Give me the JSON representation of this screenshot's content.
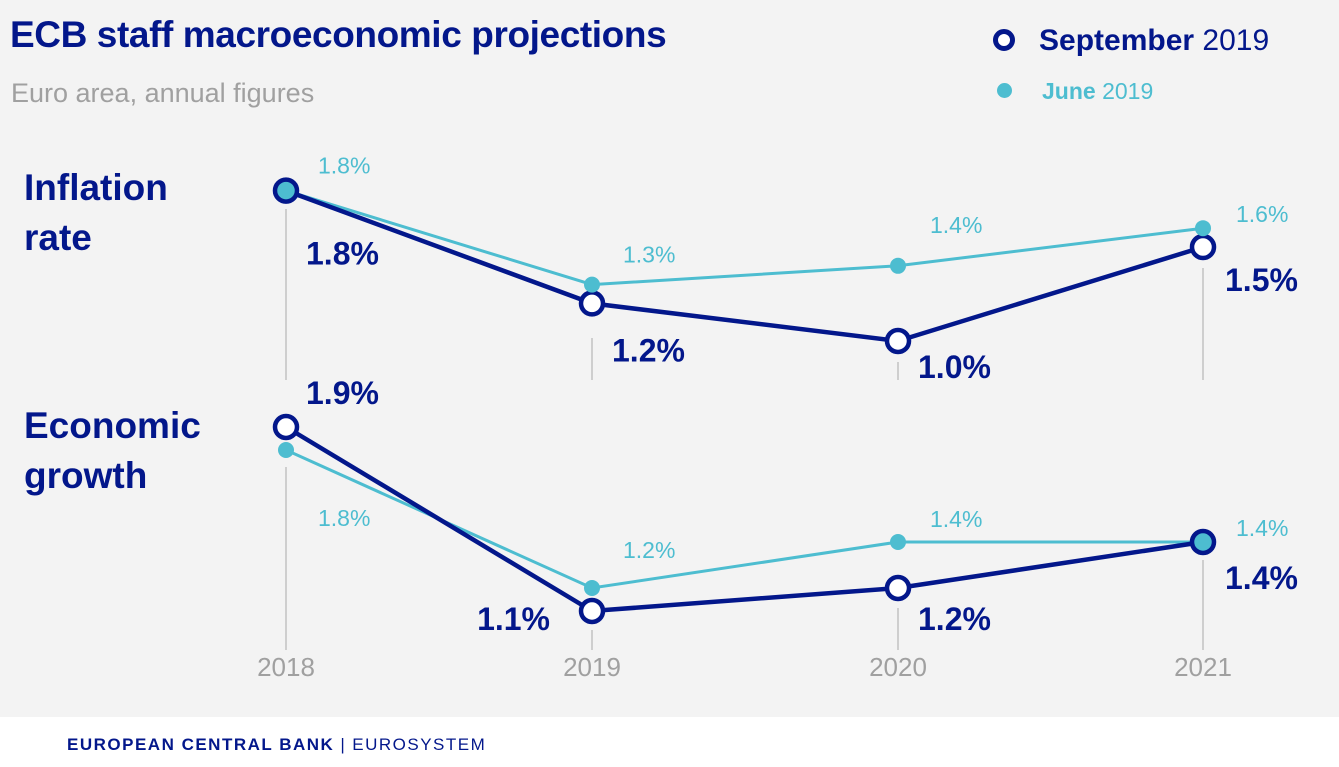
{
  "header": {
    "title": "ECB staff macroeconomic projections",
    "subtitle": "Euro area, annual figures"
  },
  "legend": {
    "september": {
      "bold": "September",
      "rest": " 2019"
    },
    "june": {
      "bold": "June",
      "rest": " 2019"
    }
  },
  "panels": {
    "inflation_label_line1": "Inflation",
    "inflation_label_line2": "rate",
    "growth_label_line1": "Economic",
    "growth_label_line2": "growth"
  },
  "colors": {
    "september": "#03178b",
    "june": "#4dbdd0",
    "gridline": "#b5b5b5",
    "axis_text": "#a0a0a0"
  },
  "footer": {
    "bank": "EUROPEAN CENTRAL BANK",
    "separator": "|",
    "system": "EUROSYSTEM"
  },
  "chart_data": [
    {
      "type": "line",
      "title": "Inflation rate",
      "categories": [
        "2018",
        "2019",
        "2020",
        "2021"
      ],
      "unit": "%",
      "series": [
        {
          "name": "September 2019",
          "values": [
            1.8,
            1.2,
            1.0,
            1.5
          ],
          "labels": [
            "1.8%",
            "1.2%",
            "1.0%",
            "1.5%"
          ]
        },
        {
          "name": "June 2019",
          "values": [
            1.8,
            1.3,
            1.4,
            1.6
          ],
          "labels": [
            "1.8%",
            "1.3%",
            "1.4%",
            "1.6%"
          ]
        }
      ]
    },
    {
      "type": "line",
      "title": "Economic growth",
      "categories": [
        "2018",
        "2019",
        "2020",
        "2021"
      ],
      "unit": "%",
      "series": [
        {
          "name": "September 2019",
          "values": [
            1.9,
            1.1,
            1.2,
            1.4
          ],
          "labels": [
            "1.9%",
            "1.1%",
            "1.2%",
            "1.4%"
          ]
        },
        {
          "name": "June 2019",
          "values": [
            1.8,
            1.2,
            1.4,
            1.4
          ],
          "labels": [
            "1.8%",
            "1.2%",
            "1.4%",
            "1.4%"
          ]
        }
      ]
    }
  ]
}
